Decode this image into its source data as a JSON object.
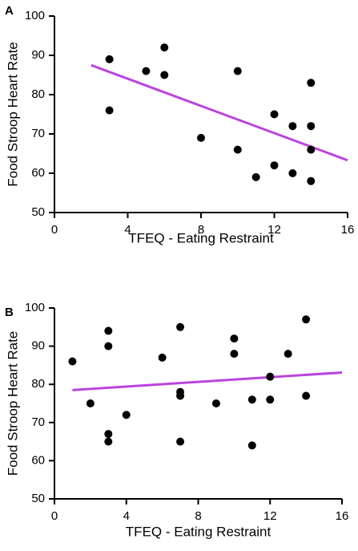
{
  "chart_data": [
    {
      "type": "scatter",
      "panel_label": "A",
      "xlabel": "TFEQ - Eating Restraint",
      "ylabel": "Food Stroop Heart Rate",
      "xlim": [
        0,
        16
      ],
      "ylim": [
        50,
        100
      ],
      "xticks": [
        0,
        4,
        8,
        12,
        16
      ],
      "yticks": [
        50,
        60,
        70,
        80,
        90,
        100
      ],
      "grid": false,
      "marker_color": "#000000",
      "line_color": "#bb44dd",
      "points": [
        {
          "x": 3,
          "y": 89
        },
        {
          "x": 3,
          "y": 76
        },
        {
          "x": 5,
          "y": 86
        },
        {
          "x": 6,
          "y": 92
        },
        {
          "x": 6,
          "y": 85
        },
        {
          "x": 8,
          "y": 69
        },
        {
          "x": 10,
          "y": 86
        },
        {
          "x": 10,
          "y": 66
        },
        {
          "x": 11,
          "y": 59
        },
        {
          "x": 12,
          "y": 75
        },
        {
          "x": 12,
          "y": 62
        },
        {
          "x": 13,
          "y": 72
        },
        {
          "x": 13,
          "y": 60
        },
        {
          "x": 14,
          "y": 83
        },
        {
          "x": 14,
          "y": 72
        },
        {
          "x": 14,
          "y": 66
        },
        {
          "x": 14,
          "y": 58
        }
      ],
      "fit_line": {
        "x": [
          2,
          16
        ],
        "y": [
          87.5,
          63.3
        ]
      }
    },
    {
      "type": "scatter",
      "panel_label": "B",
      "xlabel": "TFEQ - Eating Restraint",
      "ylabel": "Food Stroop Heart Rate",
      "xlim": [
        0,
        16
      ],
      "ylim": [
        50,
        100
      ],
      "xticks": [
        0,
        4,
        8,
        12,
        16
      ],
      "yticks": [
        50,
        60,
        70,
        80,
        90,
        100
      ],
      "grid": false,
      "marker_color": "#000000",
      "line_color": "#bb44dd",
      "points": [
        {
          "x": 1,
          "y": 86
        },
        {
          "x": 2,
          "y": 75
        },
        {
          "x": 3,
          "y": 94
        },
        {
          "x": 3,
          "y": 90
        },
        {
          "x": 3,
          "y": 67
        },
        {
          "x": 3,
          "y": 65
        },
        {
          "x": 4,
          "y": 72
        },
        {
          "x": 6,
          "y": 87
        },
        {
          "x": 7,
          "y": 95
        },
        {
          "x": 7,
          "y": 78
        },
        {
          "x": 7,
          "y": 77
        },
        {
          "x": 7,
          "y": 65
        },
        {
          "x": 9,
          "y": 75
        },
        {
          "x": 10,
          "y": 92
        },
        {
          "x": 10,
          "y": 88
        },
        {
          "x": 11,
          "y": 76
        },
        {
          "x": 11,
          "y": 64
        },
        {
          "x": 12,
          "y": 82
        },
        {
          "x": 12,
          "y": 76
        },
        {
          "x": 13,
          "y": 88
        },
        {
          "x": 14,
          "y": 97
        },
        {
          "x": 14,
          "y": 77
        }
      ],
      "fit_line": {
        "x": [
          1,
          16
        ],
        "y": [
          78.5,
          83.1
        ]
      }
    }
  ]
}
